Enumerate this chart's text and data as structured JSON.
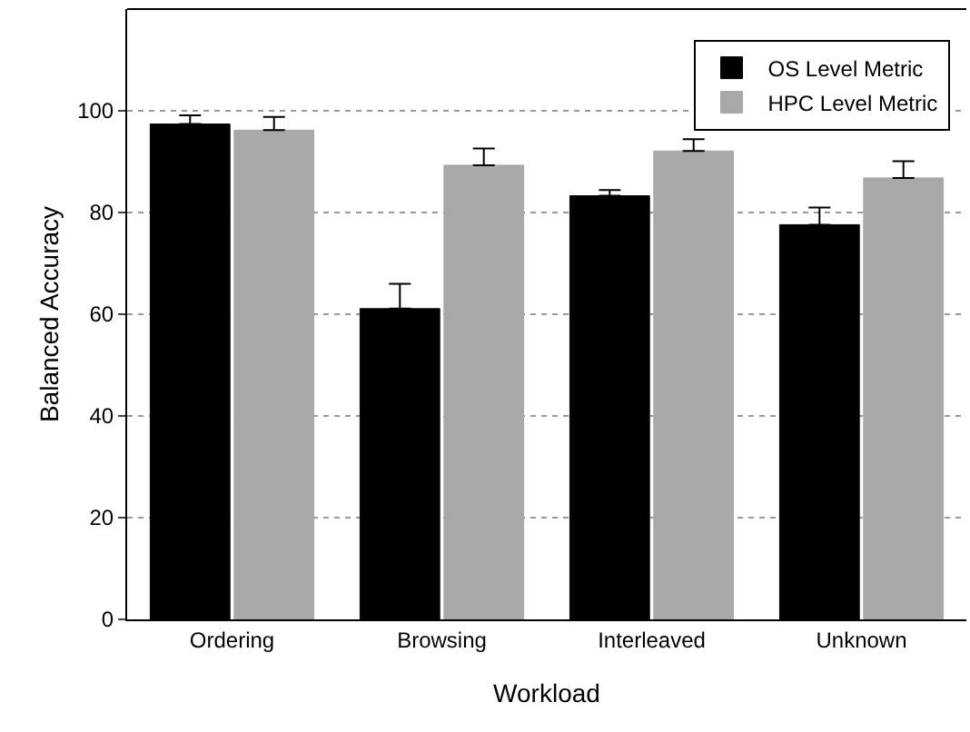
{
  "chart_data": {
    "type": "bar",
    "xlabel": "Workload",
    "ylabel": "Balanced Accuracy",
    "categories": [
      "Ordering",
      "Browsing",
      "Interleaved",
      "Unknown"
    ],
    "series": [
      {
        "name": "OS Level Metric",
        "color": "#000000",
        "values": [
          97.4,
          61.1,
          83.3,
          77.6
        ],
        "errors": [
          [
            97.4,
            99.1
          ],
          [
            61.1,
            66.0
          ],
          [
            83.3,
            84.4
          ],
          [
            77.6,
            81.0
          ]
        ]
      },
      {
        "name": "HPC Level Metric",
        "color": "#a8a8a8",
        "values": [
          96.2,
          89.3,
          92.1,
          86.8
        ],
        "errors": [
          [
            96.2,
            98.8
          ],
          [
            89.3,
            92.6
          ],
          [
            92.1,
            94.4
          ],
          [
            86.8,
            90.1
          ]
        ]
      }
    ],
    "ylim": [
      0,
      120
    ],
    "yticks": [
      0,
      20,
      40,
      60,
      80,
      100
    ],
    "grid": "y",
    "legend": "top right"
  }
}
